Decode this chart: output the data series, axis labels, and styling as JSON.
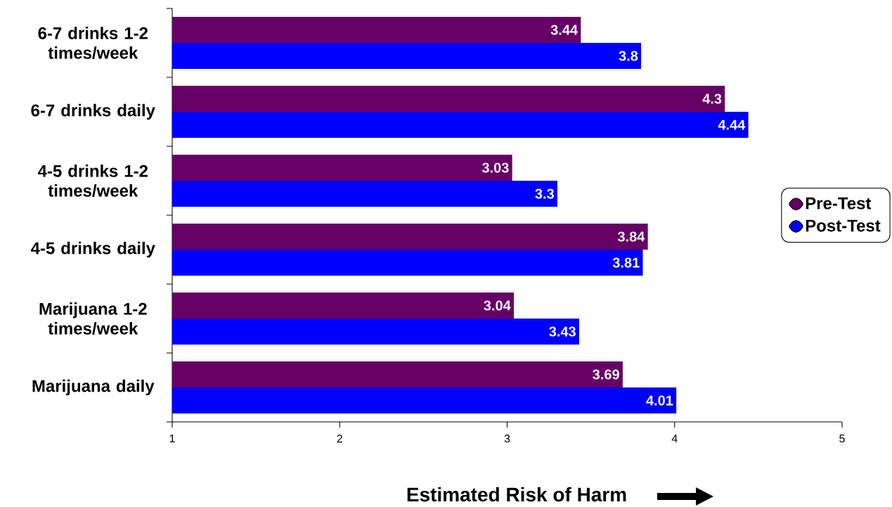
{
  "chart_data": {
    "type": "bar",
    "orientation": "horizontal",
    "xlabel": "Estimated Risk of Harm",
    "categories": [
      "6-7 drinks 1-2 times/week",
      "6-7 drinks daily",
      "4-5 drinks 1-2 times/week",
      "4-5 drinks daily",
      "Marijuana 1-2 times/week",
      "Marijuana daily"
    ],
    "series": [
      {
        "name": "Pre-Test",
        "color": "#660066",
        "values": [
          3.44,
          4.3,
          3.03,
          3.84,
          3.04,
          3.69
        ]
      },
      {
        "name": "Post-Test",
        "color": "#0000ff",
        "values": [
          3.8,
          4.44,
          3.3,
          3.81,
          3.43,
          4.01
        ]
      }
    ],
    "xlim": [
      1,
      5
    ],
    "xticks": [
      1,
      2,
      3,
      4,
      5
    ],
    "data_labels": true,
    "legend": "right",
    "grid": false
  }
}
